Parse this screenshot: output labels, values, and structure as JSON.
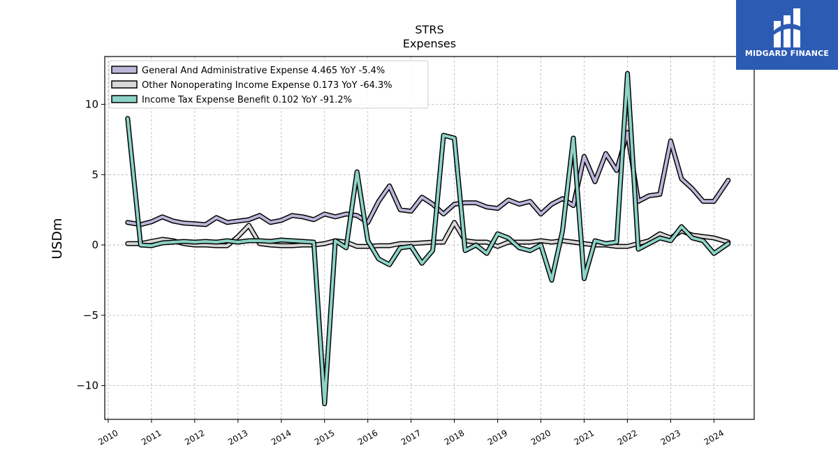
{
  "brand": {
    "name": "MIDGARD FINANCE",
    "color": "#2c5bb3"
  },
  "chart_data": {
    "type": "line",
    "title": "STRS",
    "subtitle": "Expenses",
    "ylabel": "USDm",
    "xlabel": "",
    "ylim": [
      -12.4,
      13.4
    ],
    "xlim": [
      2009.92,
      2024.93
    ],
    "y_ticks": [
      -10,
      -5,
      0,
      5,
      10
    ],
    "y_tick_labels": [
      "−10",
      "−5",
      "0",
      "5",
      "10"
    ],
    "x_ticks": [
      2010,
      2011,
      2012,
      2013,
      2014,
      2015,
      2016,
      2017,
      2018,
      2019,
      2020,
      2021,
      2022,
      2023,
      2024
    ],
    "x_tick_labels": [
      "2010",
      "2011",
      "2012",
      "2013",
      "2014",
      "2015",
      "2016",
      "2017",
      "2018",
      "2019",
      "2020",
      "2021",
      "2022",
      "2023",
      "2024"
    ],
    "grid": true,
    "legend_position": "top-left",
    "series": [
      {
        "name": "General And Administrative Expense",
        "legend_label": "General And Administrative Expense  4.465 YoY -5.4%",
        "color": "#bcb7d9",
        "points": [
          [
            2010.45,
            1.6
          ],
          [
            2010.75,
            1.45
          ],
          [
            2011.0,
            1.65
          ],
          [
            2011.25,
            2.0
          ],
          [
            2011.5,
            1.7
          ],
          [
            2011.75,
            1.55
          ],
          [
            2012.0,
            1.5
          ],
          [
            2012.25,
            1.45
          ],
          [
            2012.5,
            1.95
          ],
          [
            2012.75,
            1.6
          ],
          [
            2013.0,
            1.7
          ],
          [
            2013.25,
            1.8
          ],
          [
            2013.5,
            2.1
          ],
          [
            2013.75,
            1.6
          ],
          [
            2014.0,
            1.75
          ],
          [
            2014.25,
            2.1
          ],
          [
            2014.5,
            2.0
          ],
          [
            2014.75,
            1.8
          ],
          [
            2015.0,
            2.2
          ],
          [
            2015.25,
            2.0
          ],
          [
            2015.5,
            2.2
          ],
          [
            2015.75,
            2.1
          ],
          [
            2016.0,
            1.6
          ],
          [
            2016.25,
            3.1
          ],
          [
            2016.5,
            4.2
          ],
          [
            2016.75,
            2.5
          ],
          [
            2017.0,
            2.4
          ],
          [
            2017.25,
            3.4
          ],
          [
            2017.5,
            2.9
          ],
          [
            2017.75,
            2.2
          ],
          [
            2018.0,
            2.9
          ],
          [
            2018.25,
            3.0
          ],
          [
            2018.5,
            3.0
          ],
          [
            2018.75,
            2.7
          ],
          [
            2019.0,
            2.6
          ],
          [
            2019.25,
            3.2
          ],
          [
            2019.5,
            2.9
          ],
          [
            2019.75,
            3.1
          ],
          [
            2020.0,
            2.2
          ],
          [
            2020.25,
            2.9
          ],
          [
            2020.5,
            3.3
          ],
          [
            2020.75,
            2.8
          ],
          [
            2021.0,
            6.3
          ],
          [
            2021.25,
            4.5
          ],
          [
            2021.5,
            6.5
          ],
          [
            2021.75,
            5.3
          ],
          [
            2022.0,
            8.0
          ],
          [
            2022.25,
            3.1
          ],
          [
            2022.5,
            3.5
          ],
          [
            2022.75,
            3.6
          ],
          [
            2023.0,
            7.4
          ],
          [
            2023.25,
            4.7
          ],
          [
            2023.5,
            4.0
          ],
          [
            2023.75,
            3.1
          ],
          [
            2024.0,
            3.1
          ],
          [
            2024.33,
            4.6
          ]
        ]
      },
      {
        "name": "Other Nonoperating Income Expense",
        "legend_label": "Other Nonoperating Income Expense  0.173 YoY -64.3%",
        "color": "#d8d8d8",
        "points": [
          [
            2010.45,
            0.1
          ],
          [
            2010.75,
            0.1
          ],
          [
            2011.0,
            0.25
          ],
          [
            2011.25,
            0.4
          ],
          [
            2011.5,
            0.3
          ],
          [
            2011.75,
            0.1
          ],
          [
            2012.0,
            0.0
          ],
          [
            2012.25,
            0.0
          ],
          [
            2012.5,
            -0.05
          ],
          [
            2012.75,
            -0.05
          ],
          [
            2013.0,
            0.6
          ],
          [
            2013.25,
            1.4
          ],
          [
            2013.5,
            0.1
          ],
          [
            2013.75,
            0.0
          ],
          [
            2014.0,
            -0.05
          ],
          [
            2014.25,
            -0.05
          ],
          [
            2014.5,
            0.0
          ],
          [
            2014.75,
            0.0
          ],
          [
            2015.0,
            0.1
          ],
          [
            2015.25,
            0.3
          ],
          [
            2015.5,
            0.2
          ],
          [
            2015.75,
            -0.1
          ],
          [
            2016.0,
            -0.1
          ],
          [
            2016.25,
            -0.05
          ],
          [
            2016.5,
            -0.05
          ],
          [
            2016.75,
            0.1
          ],
          [
            2017.0,
            0.1
          ],
          [
            2017.25,
            0.15
          ],
          [
            2017.5,
            0.2
          ],
          [
            2017.75,
            0.2
          ],
          [
            2018.0,
            1.6
          ],
          [
            2018.25,
            0.3
          ],
          [
            2018.5,
            0.2
          ],
          [
            2018.75,
            0.2
          ],
          [
            2019.0,
            -0.1
          ],
          [
            2019.25,
            0.2
          ],
          [
            2019.5,
            0.2
          ],
          [
            2019.75,
            0.2
          ],
          [
            2020.0,
            0.3
          ],
          [
            2020.25,
            0.2
          ],
          [
            2020.5,
            0.3
          ],
          [
            2020.75,
            0.2
          ],
          [
            2021.0,
            0.1
          ],
          [
            2021.25,
            0.0
          ],
          [
            2021.5,
            0.0
          ],
          [
            2021.75,
            -0.1
          ],
          [
            2022.0,
            -0.1
          ],
          [
            2022.25,
            0.1
          ],
          [
            2022.5,
            0.3
          ],
          [
            2022.75,
            0.8
          ],
          [
            2023.0,
            0.5
          ],
          [
            2023.25,
            1.0
          ],
          [
            2023.5,
            0.7
          ],
          [
            2023.75,
            0.6
          ],
          [
            2024.0,
            0.5
          ],
          [
            2024.33,
            0.2
          ]
        ]
      },
      {
        "name": "Income Tax Expense Benefit",
        "legend_label": "Income Tax Expense Benefit  0.102 YoY -91.2%",
        "color": "#8dd3c7",
        "points": [
          [
            2010.45,
            9.0
          ],
          [
            2010.75,
            0.0
          ],
          [
            2011.0,
            -0.05
          ],
          [
            2011.25,
            0.15
          ],
          [
            2011.5,
            0.2
          ],
          [
            2011.75,
            0.25
          ],
          [
            2012.0,
            0.2
          ],
          [
            2012.25,
            0.25
          ],
          [
            2012.5,
            0.2
          ],
          [
            2012.75,
            0.3
          ],
          [
            2013.0,
            0.2
          ],
          [
            2013.25,
            0.3
          ],
          [
            2013.5,
            0.3
          ],
          [
            2013.75,
            0.25
          ],
          [
            2014.0,
            0.35
          ],
          [
            2014.25,
            0.3
          ],
          [
            2014.5,
            0.25
          ],
          [
            2014.75,
            0.2
          ],
          [
            2015.0,
            -11.3
          ],
          [
            2015.25,
            0.3
          ],
          [
            2015.5,
            -0.2
          ],
          [
            2015.75,
            5.2
          ],
          [
            2016.0,
            0.3
          ],
          [
            2016.25,
            -1.0
          ],
          [
            2016.5,
            -1.4
          ],
          [
            2016.75,
            -0.2
          ],
          [
            2017.0,
            -0.1
          ],
          [
            2017.25,
            -1.3
          ],
          [
            2017.5,
            -0.4
          ],
          [
            2017.75,
            7.8
          ],
          [
            2018.0,
            7.6
          ],
          [
            2018.25,
            -0.4
          ],
          [
            2018.5,
            0.0
          ],
          [
            2018.75,
            -0.6
          ],
          [
            2019.0,
            0.8
          ],
          [
            2019.25,
            0.5
          ],
          [
            2019.5,
            -0.2
          ],
          [
            2019.75,
            -0.4
          ],
          [
            2020.0,
            0.0
          ],
          [
            2020.25,
            -2.5
          ],
          [
            2020.5,
            1.0
          ],
          [
            2020.75,
            7.6
          ],
          [
            2021.0,
            -2.4
          ],
          [
            2021.25,
            0.3
          ],
          [
            2021.5,
            0.1
          ],
          [
            2021.75,
            0.2
          ],
          [
            2022.0,
            12.2
          ],
          [
            2022.25,
            -0.3
          ],
          [
            2022.5,
            0.1
          ],
          [
            2022.75,
            0.5
          ],
          [
            2023.0,
            0.3
          ],
          [
            2023.25,
            1.3
          ],
          [
            2023.5,
            0.5
          ],
          [
            2023.75,
            0.3
          ],
          [
            2024.0,
            -0.6
          ],
          [
            2024.33,
            0.1
          ]
        ]
      }
    ]
  }
}
